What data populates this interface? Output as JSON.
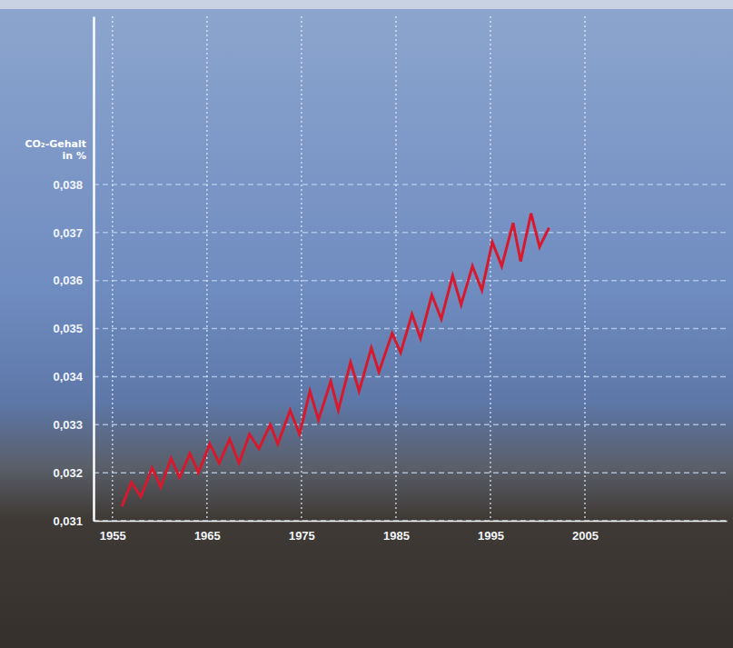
{
  "chart_data": {
    "type": "line",
    "y_label": "CO₂-Gehalt in %",
    "x": [
      1956.0,
      1957.0,
      1958.0,
      1959.2,
      1960.1,
      1961.2,
      1962.1,
      1963.2,
      1964.1,
      1965.3,
      1966.3,
      1967.4,
      1968.4,
      1969.5,
      1970.5,
      1971.7,
      1972.5,
      1973.8,
      1974.8,
      1975.9,
      1976.8,
      1978.1,
      1978.9,
      1980.2,
      1981.1,
      1982.4,
      1983.2,
      1984.6,
      1985.5,
      1986.7,
      1987.6,
      1988.8,
      1989.8,
      1991.0,
      1991.9,
      1993.1,
      1994.1,
      1995.2,
      1996.2,
      1997.4,
      1998.2,
      1999.3,
      2000.2,
      2001.2
    ],
    "values": [
      0.0313,
      0.0318,
      0.0315,
      0.0321,
      0.0317,
      0.0323,
      0.0319,
      0.0324,
      0.032,
      0.0326,
      0.0322,
      0.0327,
      0.0322,
      0.0328,
      0.0325,
      0.033,
      0.0326,
      0.0333,
      0.0328,
      0.0337,
      0.0331,
      0.0339,
      0.0333,
      0.0343,
      0.0337,
      0.0346,
      0.0341,
      0.0349,
      0.0345,
      0.0353,
      0.0348,
      0.0357,
      0.0352,
      0.0361,
      0.0355,
      0.0363,
      0.0358,
      0.0368,
      0.0363,
      0.0372,
      0.0364,
      0.0374,
      0.0367,
      0.0371
    ],
    "color": "#d7192d",
    "xlim": [
      1953,
      2020
    ],
    "xticks": [
      1955,
      1965,
      1975,
      1985,
      1995,
      2005
    ],
    "ylim": [
      0.031,
      0.0415
    ],
    "yticks": [
      {
        "value": 0.031,
        "label": "0,031"
      },
      {
        "value": 0.032,
        "label": "0,032"
      },
      {
        "value": 0.033,
        "label": "0,033"
      },
      {
        "value": 0.034,
        "label": "0,034"
      },
      {
        "value": 0.035,
        "label": "0,035"
      },
      {
        "value": 0.036,
        "label": "0,036"
      },
      {
        "value": 0.037,
        "label": "0,037"
      },
      {
        "value": 0.038,
        "label": "0,038"
      }
    ],
    "grid": true
  }
}
